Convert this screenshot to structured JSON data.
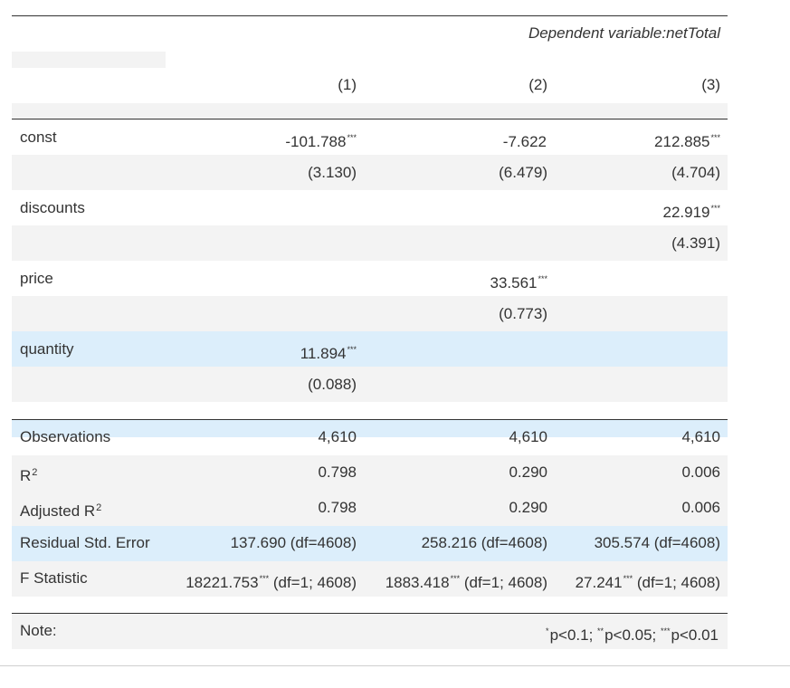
{
  "header": {
    "dependent_label": "Dependent variable:",
    "dependent_name": "netTotal",
    "columns": [
      "(1)",
      "(2)",
      "(3)"
    ]
  },
  "rows": [
    {
      "name": "const",
      "coef": [
        {
          "v": "-101.788",
          "s": "***"
        },
        {
          "v": "-7.622",
          "s": ""
        },
        {
          "v": "212.885",
          "s": "***"
        }
      ],
      "se": [
        "(3.130)",
        "(6.479)",
        "(4.704)"
      ]
    },
    {
      "name": "discounts",
      "coef": [
        {
          "v": "",
          "s": ""
        },
        {
          "v": "",
          "s": ""
        },
        {
          "v": "22.919",
          "s": "***"
        }
      ],
      "se": [
        "",
        "",
        "(4.391)"
      ]
    },
    {
      "name": "price",
      "coef": [
        {
          "v": "",
          "s": ""
        },
        {
          "v": "33.561",
          "s": "***"
        },
        {
          "v": "",
          "s": ""
        }
      ],
      "se": [
        "",
        "(0.773)",
        ""
      ]
    },
    {
      "name": "quantity",
      "coef": [
        {
          "v": "11.894",
          "s": "***"
        },
        {
          "v": "",
          "s": ""
        },
        {
          "v": "",
          "s": ""
        }
      ],
      "se": [
        "(0.088)",
        "",
        ""
      ]
    }
  ],
  "stats": {
    "observations": {
      "label": "Observations",
      "values": [
        "4,610",
        "4,610",
        "4,610"
      ]
    },
    "r2": {
      "label": "R",
      "sup": "2",
      "values": [
        "0.798",
        "0.290",
        "0.006"
      ]
    },
    "adj_r2": {
      "label": "Adjusted R",
      "sup": "2",
      "values": [
        "0.798",
        "0.290",
        "0.006"
      ]
    },
    "rse": {
      "label": "Residual Std. Error",
      "values": [
        "137.690 (df=4608)",
        "258.216 (df=4608)",
        "305.574 (df=4608)"
      ]
    },
    "fstat": {
      "label": "F Statistic",
      "values": [
        {
          "v": "18221.753",
          "s": "***",
          "df": "(df=1; 4608)"
        },
        {
          "v": "1883.418",
          "s": "***",
          "df": "(df=1; 4608)"
        },
        {
          "v": "27.241",
          "s": "***",
          "df": "(df=1; 4608)"
        }
      ]
    }
  },
  "note": {
    "label": "Note:",
    "items": [
      {
        "stars": "*",
        "text": "p<0.1;"
      },
      {
        "stars": "**",
        "text": "p<0.05;"
      },
      {
        "stars": "***",
        "text": "p<0.01"
      }
    ]
  },
  "colors": {
    "gray_band": "#f3f3f3",
    "blue_band": "#dceefb",
    "rule": "#333333",
    "text": "#333333"
  }
}
